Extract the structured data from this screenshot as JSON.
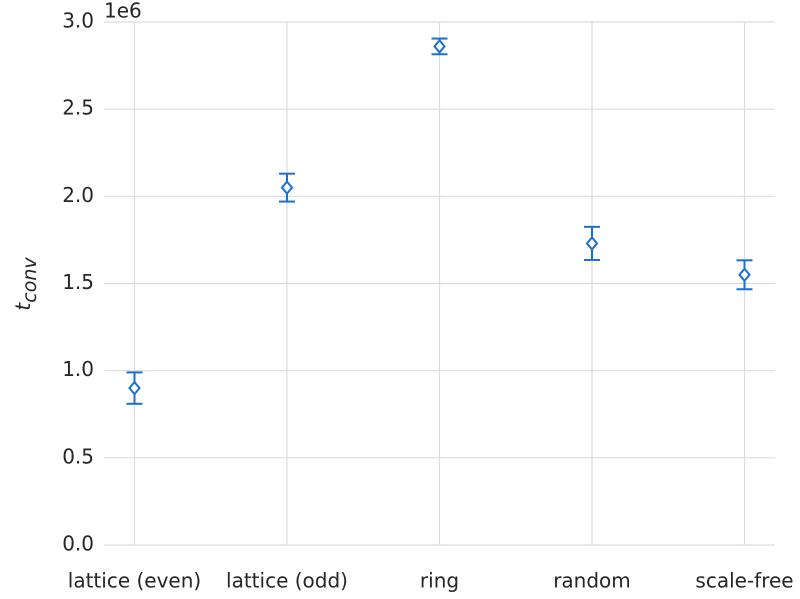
{
  "chart_data": {
    "type": "errorbar",
    "categories": [
      "lattice (even)",
      "lattice (odd)",
      "ring",
      "random",
      "scale-free"
    ],
    "values": [
      900000,
      2050000,
      2860000,
      1730000,
      1550000
    ],
    "errors": [
      90000,
      80000,
      45000,
      95000,
      83000
    ],
    "color": "#1a6fd4",
    "ylabel": "t",
    "ylabel_subscript": "conv",
    "offset_label": "1e6",
    "ylim": [
      0,
      3000000
    ],
    "yticks": [
      {
        "value": 0,
        "label": "0.0"
      },
      {
        "value": 500000,
        "label": "0.5"
      },
      {
        "value": 1000000,
        "label": "1.0"
      },
      {
        "value": 1500000,
        "label": "1.5"
      },
      {
        "value": 2000000,
        "label": "2.0"
      },
      {
        "value": 2500000,
        "label": "2.5"
      },
      {
        "value": 3000000,
        "label": "3.0"
      }
    ],
    "grid": true
  }
}
